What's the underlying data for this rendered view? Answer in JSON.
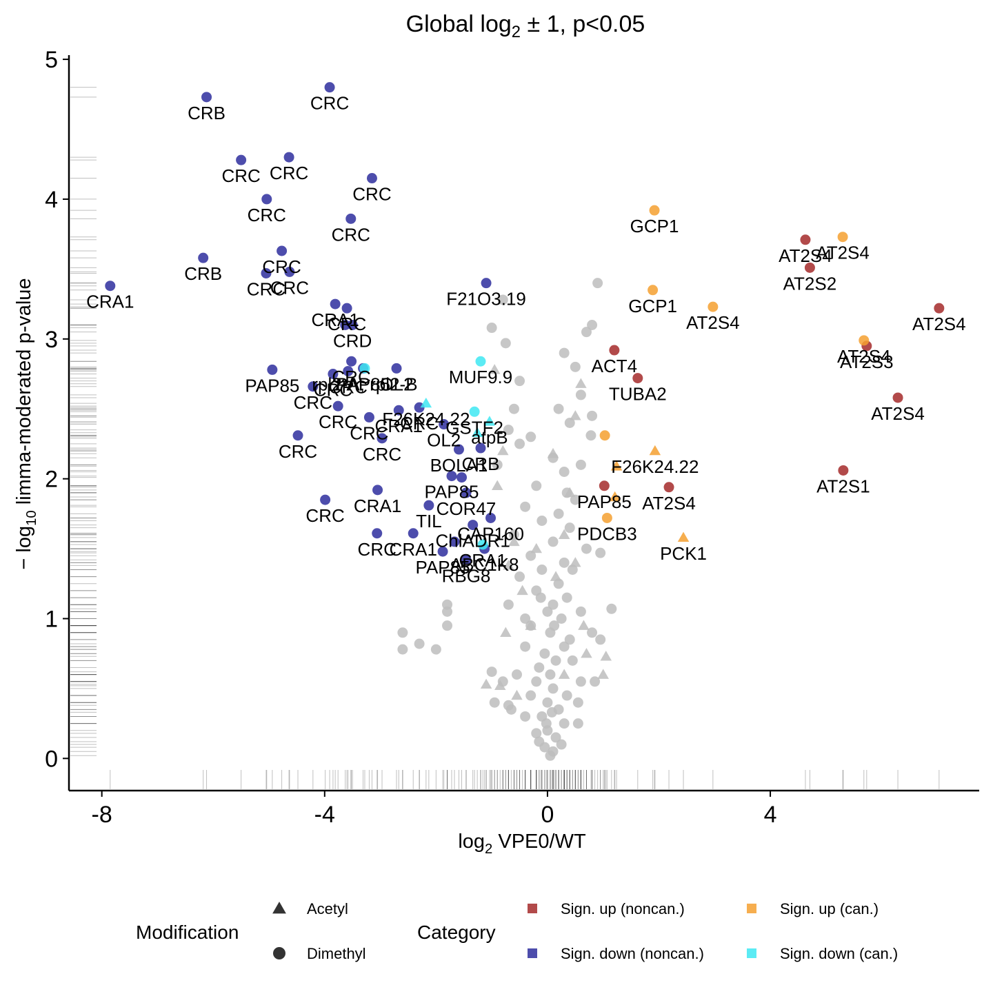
{
  "chart_data": {
    "type": "scatter",
    "title": [
      "Global log",
      "2",
      " ± 1, p<0.05"
    ],
    "x_label": [
      "log",
      "2",
      " VPE0/WT"
    ],
    "y_label": [
      "− log",
      "10",
      " limma-moderated p-value"
    ],
    "xlim": [
      -8.59,
      7.75
    ],
    "ylim": [
      -0.23,
      5.03
    ],
    "xticks": [
      -8,
      -4,
      0,
      4
    ],
    "yticks": [
      0,
      1,
      2,
      3,
      4,
      5
    ],
    "rug": true,
    "shape_legend": {
      "title": "Modification",
      "items": [
        {
          "label": "Acetyl",
          "shape": "triangle"
        },
        {
          "label": "Dimethyl",
          "shape": "circle"
        }
      ]
    },
    "color_legend_title": "Category",
    "series": [
      {
        "name": "Sign. up (noncan.)",
        "color": "#a52a2a",
        "x": [
          1.2,
          1.62,
          4.63,
          4.71,
          7.03,
          5.73,
          6.29,
          5.31,
          2.18,
          1.02
        ],
        "values": [
          2.92,
          2.72,
          3.71,
          3.51,
          3.22,
          2.95,
          2.58,
          2.06,
          1.94,
          1.95
        ],
        "labels": [
          "ACT4",
          "TUBA2",
          "AT2S4",
          "AT2S2",
          "AT2S4",
          "AT2S3",
          "AT2S4",
          "AT2S1",
          "AT2S4",
          "PAP85"
        ],
        "modification": "Dimethyl"
      },
      {
        "name": "Sign. up (can.)",
        "color": "#f5a030",
        "x": [
          1.92,
          1.89,
          5.3,
          2.97,
          5.68,
          1.03,
          1.93,
          1.24,
          1.21,
          1.07,
          2.44
        ],
        "values": [
          3.92,
          3.35,
          3.73,
          3.23,
          2.99,
          2.31,
          2.2,
          2.09,
          1.87,
          1.72,
          1.58
        ],
        "labels": [
          "GCP1",
          "GCP1",
          "AT2S4",
          "AT2S4",
          "AT2S4",
          null,
          "F26K24.22",
          null,
          null,
          "PDCB3",
          "PCK1"
        ],
        "modification": [
          "Dimethyl",
          "Dimethyl",
          "Dimethyl",
          "Dimethyl",
          "Dimethyl",
          "Dimethyl",
          "Acetyl",
          "Acetyl",
          "Acetyl",
          "Dimethyl",
          "Acetyl"
        ]
      },
      {
        "name": "Sign. down (noncan.)",
        "color": "#2e2e9e",
        "x": [
          -7.85,
          -6.12,
          -3.91,
          -5.5,
          -4.64,
          -5.04,
          -3.15,
          -3.53,
          -4.77,
          -6.18,
          -5.05,
          -4.63,
          -3.81,
          -3.6,
          -3.63,
          -3.5,
          -1.1,
          -4.94,
          -3.85,
          -3.52,
          -3.58,
          -3.31,
          -2.71,
          -4.21,
          -3.76,
          -2.67,
          -3.2,
          -2.3,
          -1.86,
          -4.48,
          -2.97,
          -1.59,
          -1.2,
          -1.72,
          -1.54,
          -3.05,
          -1.46,
          -2.13,
          -3.99,
          -1.02,
          -1.34,
          -2.41,
          -3.06,
          -1.67,
          -1.88,
          -1.13,
          -1.46
        ],
        "values": [
          3.38,
          4.73,
          4.8,
          4.28,
          4.3,
          4.0,
          4.15,
          3.86,
          3.63,
          3.58,
          3.47,
          3.48,
          3.25,
          3.22,
          3.1,
          3.1,
          3.4,
          2.78,
          2.75,
          2.84,
          2.77,
          2.79,
          2.79,
          2.66,
          2.52,
          2.49,
          2.44,
          2.51,
          2.39,
          2.31,
          2.29,
          2.21,
          2.22,
          2.02,
          2.01,
          1.92,
          1.9,
          1.81,
          1.85,
          1.72,
          1.67,
          1.61,
          1.61,
          1.55,
          1.48,
          1.5,
          1.42
        ],
        "labels": [
          "CRA1",
          "CRB",
          "CRC",
          "CRC",
          "CRC",
          "CRC",
          "CRC",
          "CRC",
          "CRC",
          "CRB",
          "CRC",
          "CRC",
          "CRA1",
          "CRC",
          null,
          "CRD",
          "F21O3.19",
          "PAP85",
          "CRC",
          "CRC",
          "CRC",
          "PAP85",
          "OL2",
          "CRC",
          "CRC",
          "CRA1",
          "CRC",
          "CRC",
          "OL2",
          "CRC",
          "CRC",
          "BOLA1",
          "CRB",
          "PAP85",
          null,
          "CRA1",
          "COR47",
          "TIL",
          "CRC",
          "CAP160",
          "ChlADR1",
          "CRA1",
          "CRC",
          null,
          "PAP85",
          "ABC1K8",
          "RBG8"
        ],
        "modification": "Dimethyl"
      },
      {
        "name": "Sign. down (can.)",
        "color": "#3ee8f2",
        "x": [
          -3.28,
          -1.2,
          -2.18,
          -1.31,
          -1.04,
          -1.26,
          -1.16
        ],
        "values": [
          2.79,
          2.84,
          2.54,
          2.48,
          2.41,
          2.33,
          1.53
        ],
        "labels": [
          "rpl2-A; rpl2-B",
          "MUF9.9",
          "F26K24.22",
          "GSTF2",
          "atpB",
          null,
          "CRA1"
        ],
        "modification": [
          "Dimethyl",
          "Dimethyl",
          "Acetyl",
          "Dimethyl",
          "Acetyl",
          "Acetyl",
          "Dimethyl"
        ]
      },
      {
        "color": "#bdbdbd",
        "modification": "Dimethyl",
        "x": [
          -0.8,
          -1.0,
          -0.75,
          0.8,
          0.7,
          0.9,
          0.3,
          0.5,
          0.6,
          0.2,
          -0.5,
          -0.6,
          -0.7,
          -0.3,
          0.4,
          0.8,
          0.78,
          -0.5,
          -0.9,
          0.1,
          0.3,
          0.6,
          -0.2,
          0.35,
          -0.4,
          0.5,
          0.2,
          -0.1,
          0.4,
          -0.6,
          0.7,
          0.95,
          0.1,
          -0.3,
          0.3,
          0.45,
          -0.5,
          0.2,
          -0.2,
          0.35,
          0.1,
          -0.7,
          0.6,
          -0.4,
          0.25,
          0.8,
          1.15,
          -0.3,
          0.05,
          0.4,
          -2.6,
          -2.3,
          -1.8,
          -1.8,
          -1.8,
          -2.6,
          -2.0,
          -0.4,
          0.3,
          0.15,
          -0.15,
          0.45,
          -0.55,
          0.6,
          -0.2,
          0.1,
          0.35,
          -0.3,
          0.55,
          -0.65,
          0.2,
          -0.1,
          0.3,
          -0.4,
          0.0,
          0.15,
          -0.2,
          0.25,
          -0.05,
          0.05,
          0.1,
          -0.15,
          -0.8,
          -1.0,
          -0.95,
          -0.7,
          0.55,
          0.95,
          0.85,
          -0.1,
          0.0,
          -0.05,
          0.05,
          0.0,
          -0.02,
          0.08,
          0.12,
          -0.12
        ],
        "values": [
          3.28,
          3.08,
          2.97,
          3.1,
          3.05,
          3.4,
          2.9,
          2.8,
          2.6,
          2.5,
          2.7,
          2.5,
          2.35,
          2.3,
          2.4,
          2.45,
          2.31,
          2.25,
          2.1,
          2.15,
          2.05,
          2.1,
          1.95,
          1.9,
          1.8,
          1.85,
          1.75,
          1.7,
          1.65,
          1.6,
          1.5,
          1.47,
          1.55,
          1.45,
          1.4,
          1.35,
          1.3,
          1.25,
          1.2,
          1.15,
          1.1,
          1.1,
          1.05,
          1.0,
          1.0,
          0.9,
          1.07,
          0.95,
          0.9,
          0.85,
          0.9,
          0.82,
          0.95,
          1.1,
          1.05,
          0.78,
          0.78,
          0.8,
          0.8,
          0.7,
          0.65,
          0.7,
          0.6,
          0.55,
          0.55,
          0.5,
          0.45,
          0.45,
          0.4,
          0.35,
          0.35,
          0.3,
          0.25,
          0.3,
          0.2,
          0.15,
          0.18,
          0.1,
          0.08,
          0.02,
          0.05,
          0.12,
          0.55,
          0.62,
          0.4,
          0.38,
          0.25,
          0.85,
          0.55,
          1.35,
          1.05,
          0.75,
          0.6,
          0.4,
          0.25,
          0.33,
          0.95,
          1.15
        ]
      },
      {
        "color": "#bdbdbd",
        "modification": "Acetyl",
        "x": [
          -0.95,
          0.6,
          -0.8,
          0.5,
          0.1,
          -0.9,
          0.4,
          -0.6,
          0.5,
          -0.7,
          0.3,
          -0.75,
          1.05,
          1.0,
          0.7,
          -1.1,
          -0.85,
          -0.55,
          0.15,
          -0.45,
          0.3,
          -0.3,
          0.65,
          -0.2
        ],
        "values": [
          2.78,
          2.68,
          2.2,
          2.45,
          2.18,
          1.95,
          1.9,
          1.55,
          1.4,
          1.38,
          1.6,
          0.9,
          0.73,
          0.6,
          0.75,
          0.53,
          0.52,
          0.45,
          1.3,
          1.2,
          0.6,
          0.95,
          0.95,
          1.5
        ]
      }
    ]
  }
}
